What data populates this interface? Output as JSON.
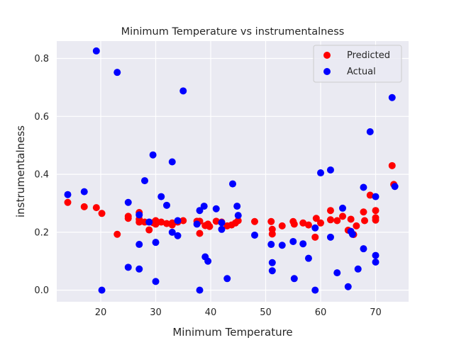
{
  "chart_data": {
    "type": "scatter",
    "title": "Minimum Temperature vs instrumentalness",
    "xlabel": "Minimum Temperature",
    "ylabel": "instrumentalness",
    "xlim": [
      12,
      76
    ],
    "ylim": [
      -0.04,
      0.86
    ],
    "xticks": [
      20,
      30,
      40,
      50,
      60,
      70
    ],
    "yticks": [
      0.0,
      0.2,
      0.4,
      0.6,
      0.8
    ],
    "ytick_labels": [
      "0.0",
      "0.2",
      "0.4",
      "0.6",
      "0.8"
    ],
    "grid": true,
    "legend_position": "top-right",
    "series": [
      {
        "name": "Predicted",
        "color": "#ff0000",
        "points": [
          [
            14.0,
            0.303
          ],
          [
            17.0,
            0.288
          ],
          [
            19.2,
            0.285
          ],
          [
            20.2,
            0.265
          ],
          [
            23.0,
            0.193
          ],
          [
            25.0,
            0.255
          ],
          [
            25.0,
            0.248
          ],
          [
            27.0,
            0.268
          ],
          [
            27.0,
            0.245
          ],
          [
            27.0,
            0.235
          ],
          [
            28.0,
            0.235
          ],
          [
            28.8,
            0.208
          ],
          [
            29.5,
            0.233
          ],
          [
            30.0,
            0.24
          ],
          [
            30.0,
            0.228
          ],
          [
            31.0,
            0.235
          ],
          [
            32.0,
            0.23
          ],
          [
            33.0,
            0.225
          ],
          [
            33.0,
            0.232
          ],
          [
            34.0,
            0.235
          ],
          [
            35.0,
            0.24
          ],
          [
            37.5,
            0.238
          ],
          [
            38.0,
            0.238
          ],
          [
            38.0,
            0.196
          ],
          [
            39.0,
            0.223
          ],
          [
            39.5,
            0.228
          ],
          [
            39.8,
            0.22
          ],
          [
            41.0,
            0.238
          ],
          [
            42.0,
            0.235
          ],
          [
            43.0,
            0.222
          ],
          [
            43.8,
            0.225
          ],
          [
            44.5,
            0.232
          ],
          [
            45.0,
            0.24
          ],
          [
            48.0,
            0.237
          ],
          [
            51.0,
            0.237
          ],
          [
            51.2,
            0.21
          ],
          [
            51.2,
            0.194
          ],
          [
            53.0,
            0.222
          ],
          [
            55.0,
            0.237
          ],
          [
            55.2,
            0.228
          ],
          [
            56.8,
            0.232
          ],
          [
            57.8,
            0.225
          ],
          [
            59.0,
            0.183
          ],
          [
            59.2,
            0.248
          ],
          [
            60.0,
            0.232
          ],
          [
            61.8,
            0.243
          ],
          [
            61.8,
            0.275
          ],
          [
            63.0,
            0.24
          ],
          [
            64.0,
            0.255
          ],
          [
            65.0,
            0.207
          ],
          [
            65.5,
            0.245
          ],
          [
            66.0,
            0.192
          ],
          [
            66.5,
            0.222
          ],
          [
            67.8,
            0.27
          ],
          [
            68.0,
            0.24
          ],
          [
            69.0,
            0.328
          ],
          [
            70.0,
            0.275
          ],
          [
            70.0,
            0.25
          ],
          [
            70.0,
            0.242
          ],
          [
            73.0,
            0.43
          ],
          [
            73.3,
            0.365
          ]
        ]
      },
      {
        "name": "Actual",
        "color": "#0000ff",
        "points": [
          [
            14.0,
            0.33
          ],
          [
            17.0,
            0.34
          ],
          [
            19.2,
            0.826
          ],
          [
            20.2,
            0.0
          ],
          [
            23.0,
            0.752
          ],
          [
            25.0,
            0.303
          ],
          [
            25.0,
            0.079
          ],
          [
            27.0,
            0.26
          ],
          [
            27.0,
            0.158
          ],
          [
            27.0,
            0.073
          ],
          [
            28.0,
            0.378
          ],
          [
            28.8,
            0.235
          ],
          [
            29.5,
            0.467
          ],
          [
            30.0,
            0.165
          ],
          [
            30.0,
            0.03
          ],
          [
            31.0,
            0.323
          ],
          [
            32.0,
            0.293
          ],
          [
            33.0,
            0.443
          ],
          [
            33.0,
            0.2
          ],
          [
            34.0,
            0.188
          ],
          [
            34.0,
            0.24
          ],
          [
            35.0,
            0.688
          ],
          [
            37.5,
            0.228
          ],
          [
            38.0,
            0.275
          ],
          [
            38.0,
            0.0
          ],
          [
            38.8,
            0.29
          ],
          [
            39.0,
            0.115
          ],
          [
            39.5,
            0.1
          ],
          [
            41.0,
            0.281
          ],
          [
            42.0,
            0.233
          ],
          [
            42.0,
            0.21
          ],
          [
            43.0,
            0.04
          ],
          [
            44.0,
            0.367
          ],
          [
            44.8,
            0.29
          ],
          [
            45.0,
            0.258
          ],
          [
            48.0,
            0.19
          ],
          [
            51.0,
            0.158
          ],
          [
            51.2,
            0.095
          ],
          [
            51.2,
            0.067
          ],
          [
            53.0,
            0.155
          ],
          [
            55.0,
            0.168
          ],
          [
            55.2,
            0.04
          ],
          [
            56.8,
            0.16
          ],
          [
            57.8,
            0.11
          ],
          [
            59.0,
            0.215
          ],
          [
            59.0,
            0.0
          ],
          [
            60.0,
            0.405
          ],
          [
            61.8,
            0.415
          ],
          [
            61.8,
            0.183
          ],
          [
            63.0,
            0.06
          ],
          [
            64.0,
            0.283
          ],
          [
            65.0,
            0.012
          ],
          [
            65.5,
            0.203
          ],
          [
            65.8,
            0.193
          ],
          [
            66.8,
            0.073
          ],
          [
            67.8,
            0.355
          ],
          [
            67.8,
            0.143
          ],
          [
            69.0,
            0.547
          ],
          [
            70.0,
            0.323
          ],
          [
            70.0,
            0.12
          ],
          [
            70.0,
            0.097
          ],
          [
            73.0,
            0.665
          ],
          [
            73.5,
            0.358
          ]
        ]
      }
    ]
  }
}
